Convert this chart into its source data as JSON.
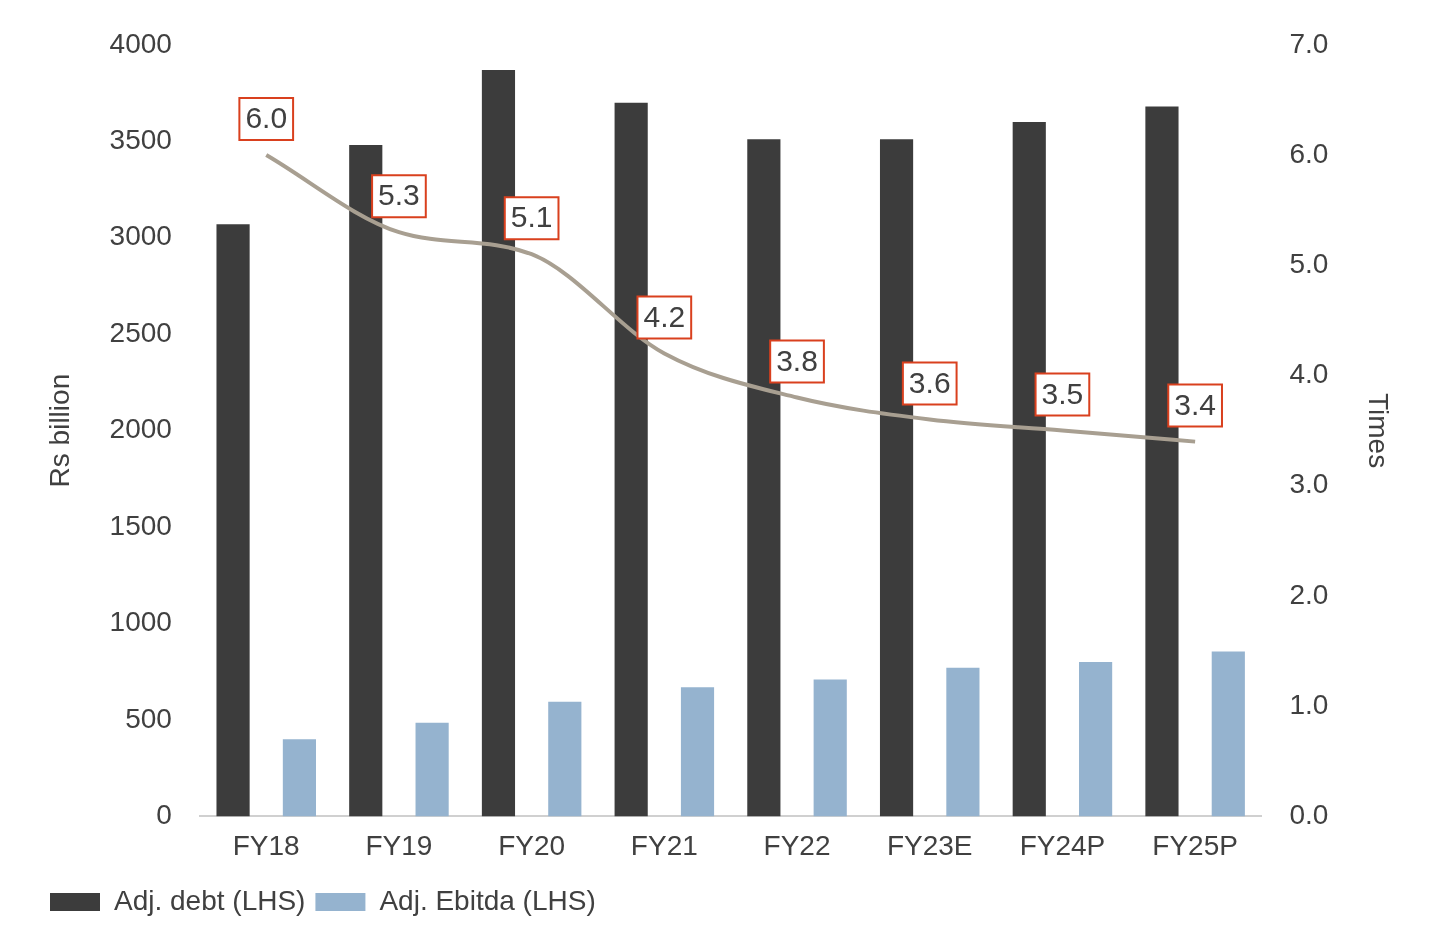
{
  "chart_data": {
    "type": "bar",
    "xlabel": null,
    "ylabel": "Rs billion",
    "y2label": "Times",
    "categories": [
      "FY18",
      "FY19",
      "FY20",
      "FY21",
      "FY22",
      "FY23E",
      "FY24P",
      "FY25P"
    ],
    "series": [
      {
        "name": "Adj. debt (LHS)",
        "color": "#3c3c3c",
        "values": [
          3070,
          3480,
          3870,
          3700,
          3510,
          3510,
          3600,
          3680
        ]
      },
      {
        "name": "Adj. Ebitda (LHS)",
        "color": "#95b3cf",
        "values": [
          400,
          485,
          595,
          670,
          710,
          770,
          800,
          855
        ]
      },
      {
        "type": "line",
        "axis": "y2",
        "color": "#a89f91",
        "values": [
          6.0,
          5.3,
          5.1,
          4.2,
          3.8,
          3.6,
          3.5,
          3.4
        ],
        "value_labels": [
          "6.0",
          "5.3",
          "5.1",
          "4.2",
          "3.8",
          "3.6",
          "3.5",
          "3.4"
        ]
      }
    ],
    "ylim": [
      0,
      4000
    ],
    "yticks": [
      0,
      500,
      1000,
      1500,
      2000,
      2500,
      3000,
      3500,
      4000
    ],
    "y2lim": [
      0,
      7
    ],
    "y2ticks": [
      {
        "value": 0,
        "label": "0.0"
      },
      {
        "value": 1,
        "label": "1.0"
      },
      {
        "value": 2,
        "label": "2.0"
      },
      {
        "value": 3,
        "label": "3.0"
      },
      {
        "value": 4,
        "label": "4.0"
      },
      {
        "value": 5,
        "label": "5.0"
      },
      {
        "value": 6,
        "label": "6.0"
      },
      {
        "value": 7,
        "label": "7.0"
      }
    ],
    "grid": false,
    "legend": "bottom"
  }
}
